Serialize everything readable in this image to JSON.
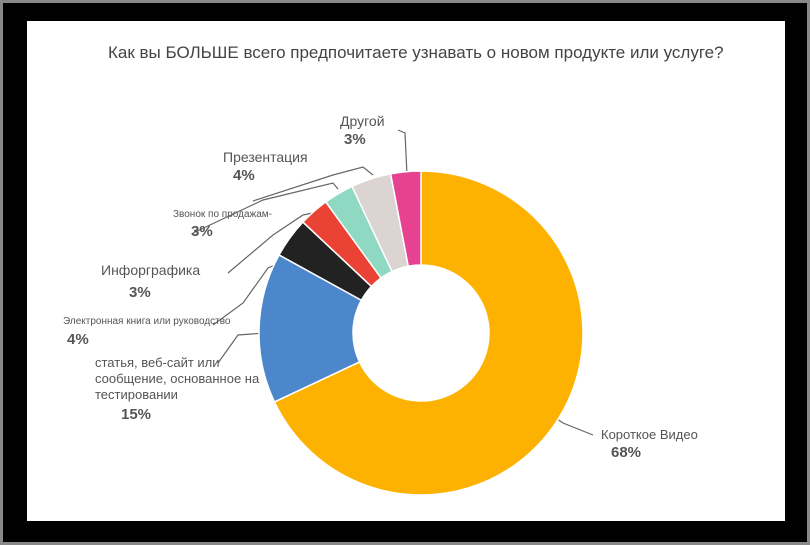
{
  "chart_data": {
    "type": "pie",
    "donut": true,
    "title": "Как вы БОЛЬШЕ всего предпочитаете узнавать о новом продукте или услуге?",
    "categories": [
      "Короткое Видео",
      "статья, веб-сайт или сообщение, основанное на тестировании",
      "Электронная книга или руководство",
      "Инфорграфика",
      "Звонок по продажам-",
      "Презентация",
      "Другой"
    ],
    "values": [
      68,
      15,
      4,
      3,
      3,
      4,
      3
    ],
    "value_labels": [
      "68%",
      "15%",
      "4%",
      "3%",
      "3%",
      "4%",
      "3%"
    ],
    "colors": [
      "#fdb201",
      "#4d87cb",
      "#222222",
      "#ea4335",
      "#8fd9c3",
      "#dcd3d3",
      "#e64291"
    ]
  }
}
